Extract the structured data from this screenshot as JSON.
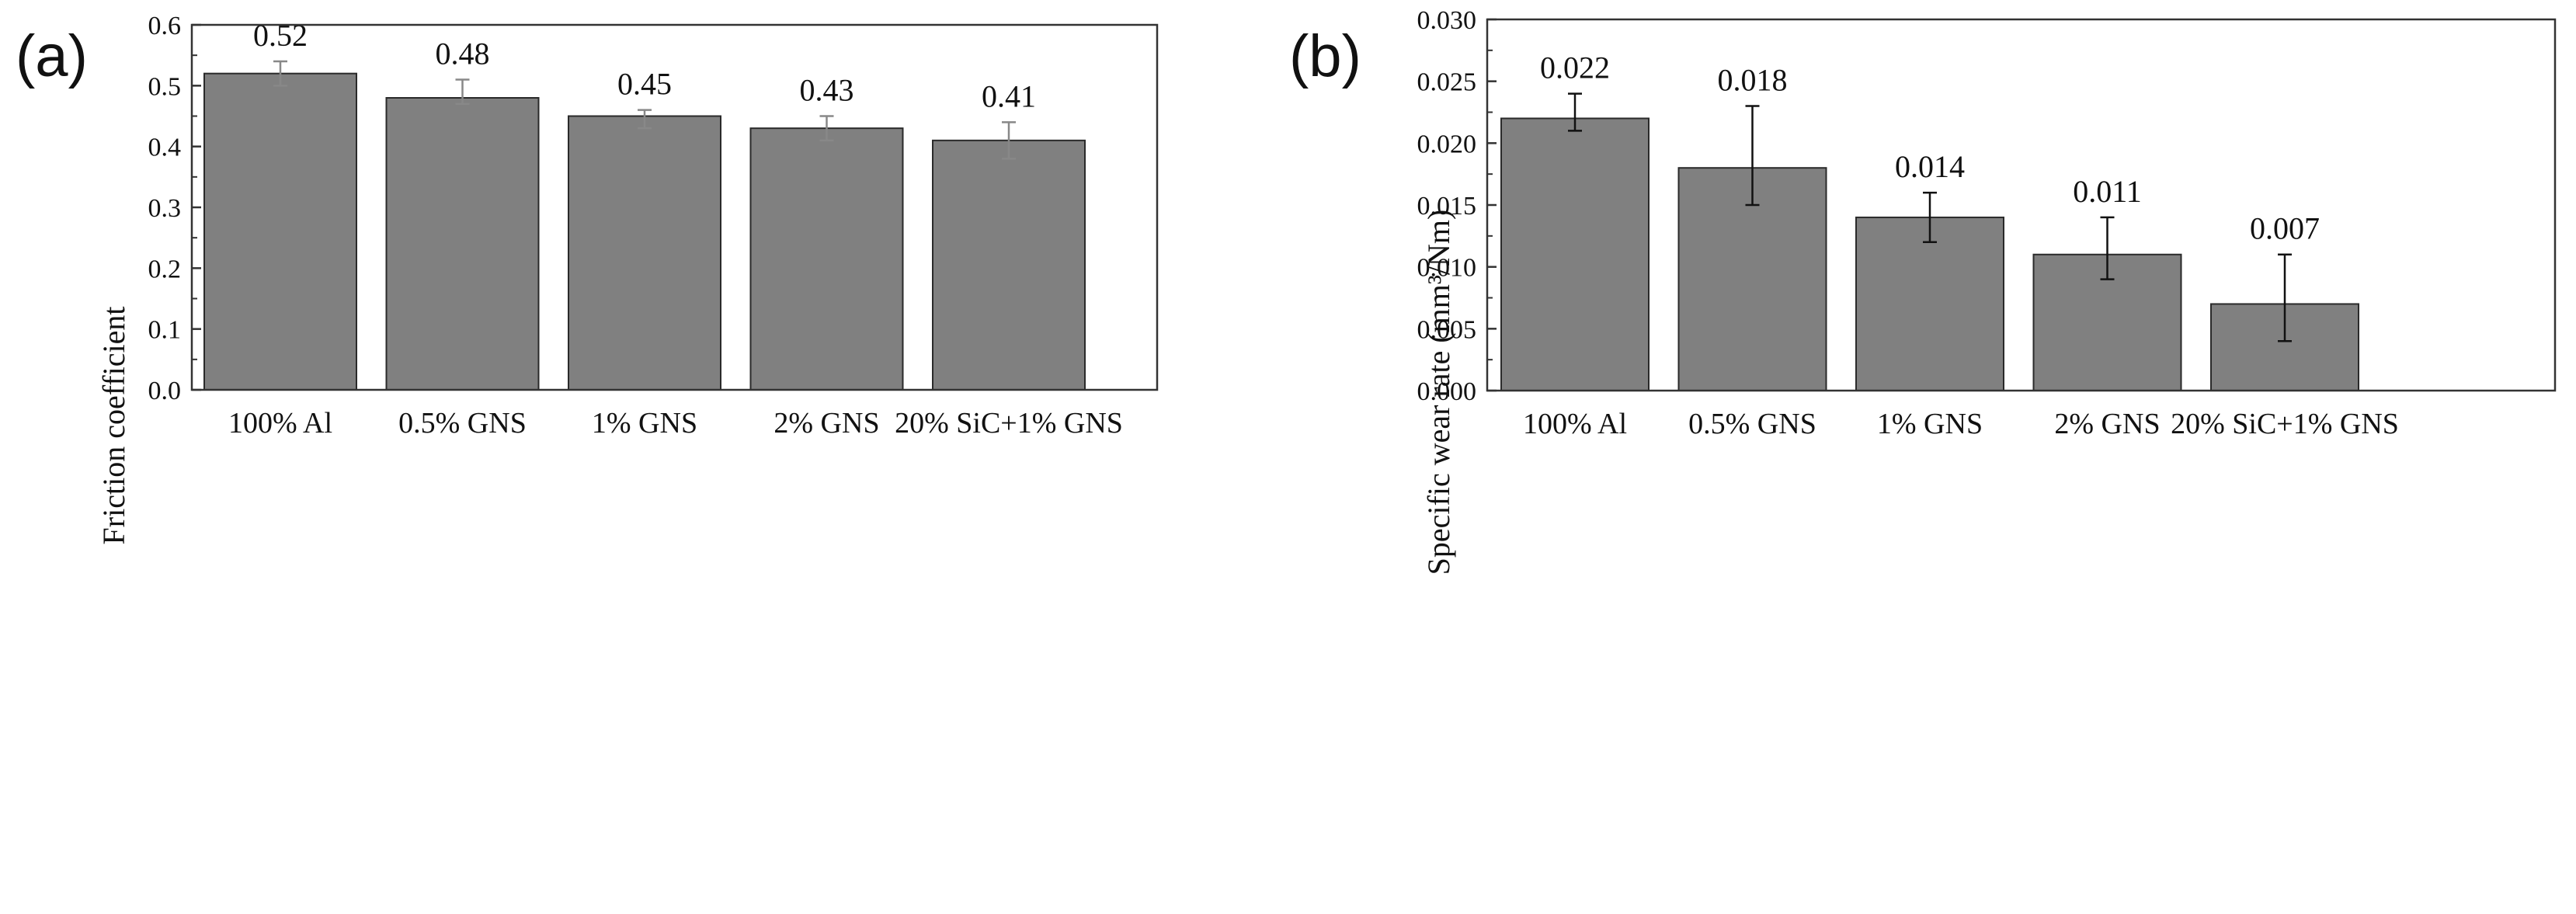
{
  "chart_data": [
    {
      "type": "bar",
      "panel_label": "(a)",
      "title": "",
      "xlabel": "",
      "ylabel": "Friction coefficient",
      "categories": [
        "100% Al",
        "0.5% GNS",
        "1% GNS",
        "2% GNS",
        "20% SiC+1% GNS"
      ],
      "values": [
        0.52,
        0.48,
        0.45,
        0.43,
        0.41
      ],
      "value_labels": [
        "0.52",
        "0.48",
        "0.45",
        "0.43",
        "0.41"
      ],
      "error_low": [
        0.5,
        0.47,
        0.43,
        0.41,
        0.38
      ],
      "error_high": [
        0.54,
        0.51,
        0.46,
        0.45,
        0.44
      ],
      "ylim": [
        0,
        0.6
      ],
      "yticks": [
        0.0,
        0.1,
        0.2,
        0.3,
        0.4,
        0.5,
        0.6
      ],
      "ytick_labels": [
        "0.0",
        "0.1",
        "0.2",
        "0.3",
        "0.4",
        "0.5",
        "0.6"
      ],
      "error_bar_color": "#888888",
      "grid": false
    },
    {
      "type": "bar",
      "panel_label": "(b)",
      "title": "",
      "xlabel": "",
      "ylabel": "Specific wear rate (mm³/Nm)",
      "categories": [
        "100% Al",
        "0.5% GNS",
        "1% GNS",
        "2% GNS",
        "20% SiC+1% GNS"
      ],
      "values": [
        0.022,
        0.018,
        0.014,
        0.011,
        0.007
      ],
      "value_labels": [
        "0.022",
        "0.018",
        "0.014",
        "0.011",
        "0.007"
      ],
      "error_low": [
        0.021,
        0.015,
        0.012,
        0.009,
        0.004
      ],
      "error_high": [
        0.024,
        0.023,
        0.016,
        0.014,
        0.011
      ],
      "ylim": [
        0,
        0.03
      ],
      "yticks": [
        0.0,
        0.005,
        0.01,
        0.015,
        0.02,
        0.025,
        0.03
      ],
      "ytick_labels": [
        "0.000",
        "0.005",
        "0.010",
        "0.015",
        "0.020",
        "0.025",
        "0.030"
      ],
      "error_bar_color": "#111111",
      "grid": false
    }
  ],
  "colors": {
    "bar_fill": "#808080",
    "bar_edge": "#2a2a2a",
    "axis": "#333333",
    "text": "#111111"
  }
}
